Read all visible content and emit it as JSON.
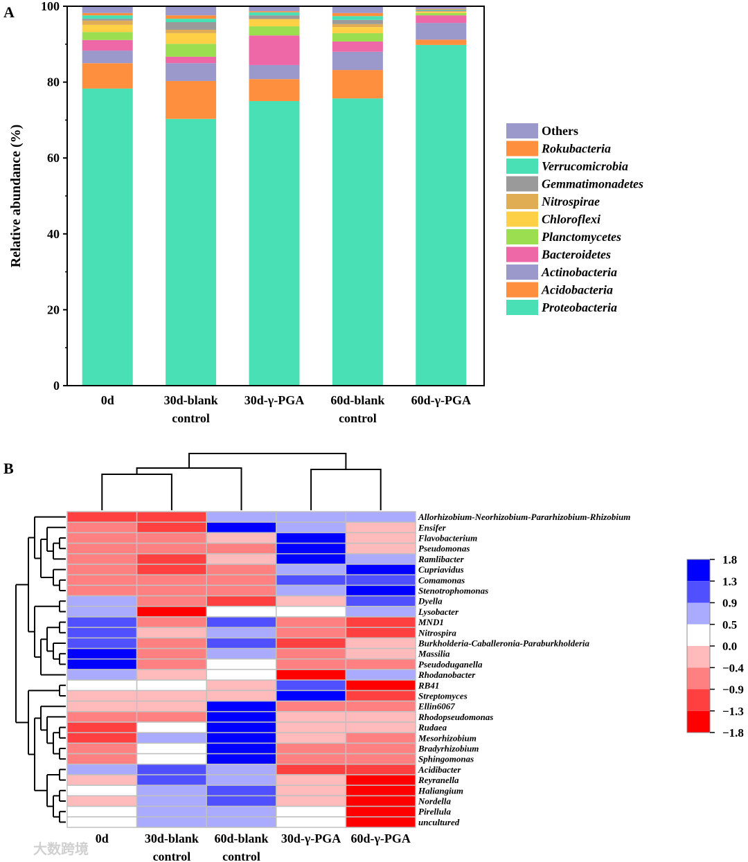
{
  "chart_data": [
    {
      "type": "bar",
      "stacked": true,
      "panel_label": "A",
      "title": "",
      "xlabel": "",
      "ylabel": "Relative abundance (%)",
      "ylim": [
        0,
        100
      ],
      "yticks": [
        "0",
        "20",
        "40",
        "60",
        "80",
        "100"
      ],
      "categories": [
        [
          "0d"
        ],
        [
          "30d-blank",
          "control"
        ],
        [
          "30d-γ-PGA"
        ],
        [
          "60d-blank",
          "control"
        ],
        [
          "60d-γ-PGA"
        ]
      ],
      "legend_position": "right",
      "series": [
        {
          "name": "Proteobacteria",
          "color": "#48e0b4",
          "italic": true,
          "values": [
            78.3,
            70.3,
            75.0,
            75.7,
            89.8
          ]
        },
        {
          "name": "Acidobacteria",
          "color": "#fd8f3f",
          "italic": true,
          "values": [
            6.7,
            10.0,
            5.8,
            7.5,
            1.4
          ]
        },
        {
          "name": "Actinobacteria",
          "color": "#9b98cc",
          "italic": true,
          "values": [
            3.3,
            4.7,
            3.7,
            4.8,
            4.4
          ]
        },
        {
          "name": "Bacteroidetes",
          "color": "#ee67a7",
          "italic": true,
          "values": [
            2.8,
            1.7,
            7.8,
            2.7,
            2.0
          ]
        },
        {
          "name": "Planctomycetes",
          "color": "#9bde4f",
          "italic": true,
          "values": [
            2.1,
            3.4,
            2.4,
            2.2,
            0.6
          ]
        },
        {
          "name": "Chloroflexi",
          "color": "#fdd046",
          "italic": true,
          "values": [
            1.9,
            2.8,
            1.8,
            1.6,
            0.3
          ]
        },
        {
          "name": "Nitrospirae",
          "color": "#e0ad55",
          "italic": true,
          "values": [
            1.1,
            0.9,
            0.2,
            0.8,
            0.2
          ]
        },
        {
          "name": "Gemmatimonadetes",
          "color": "#9a9a9a",
          "italic": true,
          "values": [
            0.5,
            2.0,
            0.9,
            1.1,
            0.2
          ]
        },
        {
          "name": "Verrucomicrobia",
          "color": "#48e0b4",
          "italic": true,
          "values": [
            0.9,
            0.9,
            0.8,
            1.0,
            0.2
          ]
        },
        {
          "name": "Rokubacteria",
          "color": "#fd8f3f",
          "italic": true,
          "values": [
            0.6,
            0.9,
            0.3,
            0.8,
            0.2
          ]
        },
        {
          "name": "Others",
          "color": "#9b98cc",
          "italic": false,
          "values": [
            1.8,
            2.4,
            1.3,
            1.8,
            0.7
          ]
        }
      ]
    },
    {
      "type": "heatmap",
      "panel_label": "B",
      "columns": [
        [
          "0d"
        ],
        [
          "30d-blank",
          "control"
        ],
        [
          "60d-blank",
          "control"
        ],
        [
          "30d-γ-PGA"
        ],
        [
          "60d-γ-PGA"
        ]
      ],
      "rows": [
        "Allorhizobium-Neorhizobium-Pararhizobium-Rhizobium",
        "Ensifer",
        "Flavobacterium",
        "Pseudomonas",
        "Ramlibacter",
        "Cupriavidus",
        "Comamonas",
        "Stenotrophomonas",
        "Dyella",
        "Lysobacter",
        "MND1",
        "Nitrospira",
        "Burkholderia-Caballeronia-Paraburkholderia",
        "Massilia",
        "Pseudoduganella",
        "Rhodanobacter",
        "RB41",
        "Streptomyces",
        "Ellin6067",
        "Rhodopseudomonas",
        "Rudaea",
        "Mesorhizobium",
        "Bradyrhizobium",
        "Sphingomonas",
        "Acidibacter",
        "Reyranella",
        "Haliangium",
        "Nordella",
        "Pirellula",
        "uncultured"
      ],
      "values": [
        [
          -1.1,
          -1.1,
          0.7,
          0.7,
          0.7
        ],
        [
          -0.65,
          -1.1,
          1.55,
          0.7,
          -0.2
        ],
        [
          -0.65,
          -0.65,
          -0.2,
          1.55,
          -0.2
        ],
        [
          -0.65,
          -0.65,
          -0.65,
          1.55,
          -0.2
        ],
        [
          -0.65,
          -1.1,
          -0.2,
          1.55,
          0.7
        ],
        [
          -0.65,
          -1.1,
          -0.65,
          0.7,
          1.55
        ],
        [
          -0.65,
          -0.65,
          -0.65,
          1.1,
          1.1
        ],
        [
          -0.65,
          -0.65,
          -0.65,
          0.7,
          1.55
        ],
        [
          0.7,
          -0.65,
          -1.1,
          -0.2,
          1.1
        ],
        [
          0.7,
          -1.55,
          0.25,
          0.25,
          0.7
        ],
        [
          1.1,
          -0.65,
          1.1,
          -0.65,
          -1.1
        ],
        [
          1.1,
          -0.2,
          0.7,
          -0.65,
          -1.1
        ],
        [
          1.1,
          -0.65,
          1.1,
          -1.1,
          -0.2
        ],
        [
          1.55,
          -0.65,
          0.7,
          -0.65,
          -0.2
        ],
        [
          1.55,
          -0.65,
          0.25,
          -0.65,
          -0.65
        ],
        [
          0.7,
          -0.2,
          0.25,
          -1.55,
          0.7
        ],
        [
          0.25,
          0.25,
          -0.2,
          1.1,
          -1.55
        ],
        [
          -0.2,
          -0.2,
          -0.2,
          1.55,
          -1.1
        ],
        [
          -0.2,
          -0.2,
          1.55,
          -0.65,
          -0.65
        ],
        [
          -0.65,
          -0.65,
          1.55,
          -0.2,
          -0.2
        ],
        [
          -1.1,
          0.25,
          1.55,
          -0.2,
          -0.2
        ],
        [
          -1.1,
          0.7,
          1.55,
          -0.2,
          -0.65
        ],
        [
          -0.65,
          0.25,
          1.55,
          -0.65,
          -0.65
        ],
        [
          -0.65,
          0.25,
          1.55,
          -0.65,
          -0.65
        ],
        [
          0.7,
          1.1,
          0.7,
          -1.1,
          -1.1
        ],
        [
          -0.2,
          1.1,
          0.7,
          -0.2,
          -1.55
        ],
        [
          0.25,
          0.7,
          1.1,
          -0.2,
          -1.55
        ],
        [
          -0.2,
          0.7,
          1.1,
          -0.2,
          -1.55
        ],
        [
          0.25,
          0.7,
          0.7,
          0.25,
          -1.55
        ],
        [
          0.25,
          0.7,
          0.7,
          0.25,
          -1.55
        ]
      ],
      "colorbar": {
        "ticks": [
          "1.8",
          "1.3",
          "0.9",
          "0.5",
          "0.0",
          "−0.4",
          "−0.9",
          "−1.3",
          "−1.8"
        ],
        "range": [
          -1.8,
          1.8
        ],
        "colors": [
          "#0000ff",
          "#5050ff",
          "#aaaaff",
          "#ffffff",
          "#ffbbbb",
          "#ff8080",
          "#ff4040",
          "#ff0000"
        ]
      }
    }
  ],
  "watermark": "大数跨境"
}
